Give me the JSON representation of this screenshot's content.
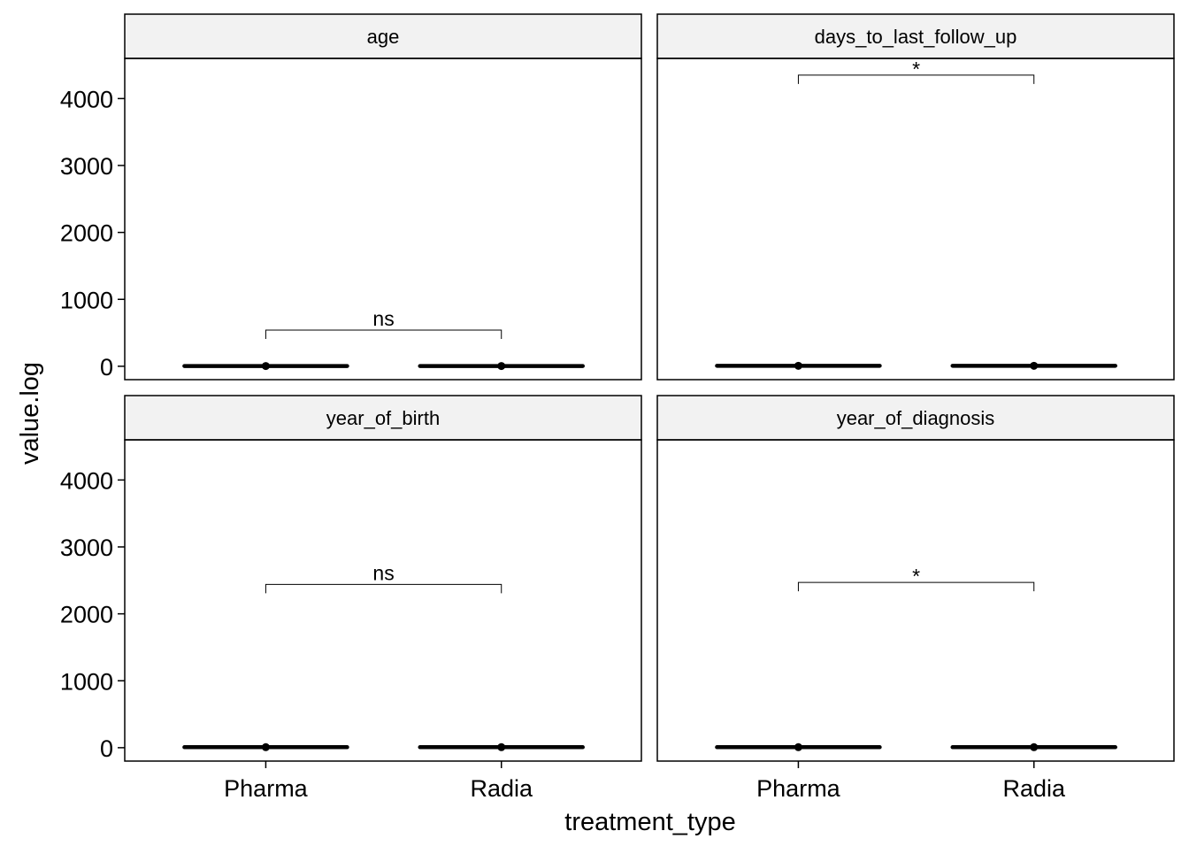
{
  "chart_data": {
    "type": "box",
    "layout": "facet_wrap 2x2",
    "xlabel": "treatment_type",
    "ylabel": "value.log",
    "categories": [
      "Pharma",
      "Radia"
    ],
    "y_ticks": [
      0,
      1000,
      2000,
      3000,
      4000
    ],
    "ylim": [
      -200,
      4600
    ],
    "grid": false,
    "panels": [
      {
        "strip": "age",
        "boxes": [
          {
            "category": "Pharma",
            "median": 4.1
          },
          {
            "category": "Radia",
            "median": 4.1
          }
        ],
        "comparison": {
          "from": "Pharma",
          "to": "Radia",
          "y": 540,
          "label": "ns"
        }
      },
      {
        "strip": "days_to_last_follow_up",
        "boxes": [
          {
            "category": "Pharma",
            "median": 7
          },
          {
            "category": "Radia",
            "median": 7
          }
        ],
        "comparison": {
          "from": "Pharma",
          "to": "Radia",
          "y": 4350,
          "label": "*"
        }
      },
      {
        "strip": "year_of_birth",
        "boxes": [
          {
            "category": "Pharma",
            "median": 7.6
          },
          {
            "category": "Radia",
            "median": 7.6
          }
        ],
        "comparison": {
          "from": "Pharma",
          "to": "Radia",
          "y": 2440,
          "label": "ns"
        }
      },
      {
        "strip": "year_of_diagnosis",
        "boxes": [
          {
            "category": "Pharma",
            "median": 7.6
          },
          {
            "category": "Radia",
            "median": 7.6
          }
        ],
        "comparison": {
          "from": "Pharma",
          "to": "Radia",
          "y": 2470,
          "label": "*"
        }
      }
    ]
  }
}
